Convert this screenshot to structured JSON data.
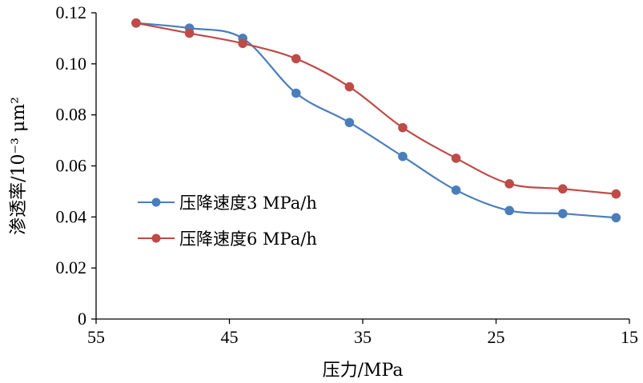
{
  "chart_data": {
    "type": "line",
    "title": "",
    "xlabel": "压力/MPa",
    "ylabel": "渗透率/10⁻³ μm²",
    "xlim": [
      55,
      15
    ],
    "x_reversed": true,
    "ylim": [
      0,
      0.12
    ],
    "x_ticks": [
      "55",
      "45",
      "35",
      "25",
      "15"
    ],
    "y_ticks": [
      "0",
      "0.02",
      "0.04",
      "0.06",
      "0.08",
      "0.10",
      "0.12"
    ],
    "grid": false,
    "legend_position": "center-left",
    "series": [
      {
        "name": "压降速度3 MPa/h",
        "color": "#4a7ebb",
        "x": [
          52,
          48,
          44,
          40,
          36,
          32,
          28,
          24,
          20,
          16
        ],
        "y": [
          0.116,
          0.114,
          0.11,
          0.0885,
          0.077,
          0.0637,
          0.0505,
          0.0425,
          0.0413,
          0.0397
        ]
      },
      {
        "name": "压降速度6 MPa/h",
        "color": "#be4b48",
        "x": [
          52,
          48,
          44,
          40,
          36,
          32,
          28,
          24,
          20,
          16
        ],
        "y": [
          0.116,
          0.112,
          0.108,
          0.102,
          0.091,
          0.075,
          0.063,
          0.053,
          0.051,
          0.049
        ]
      }
    ]
  }
}
